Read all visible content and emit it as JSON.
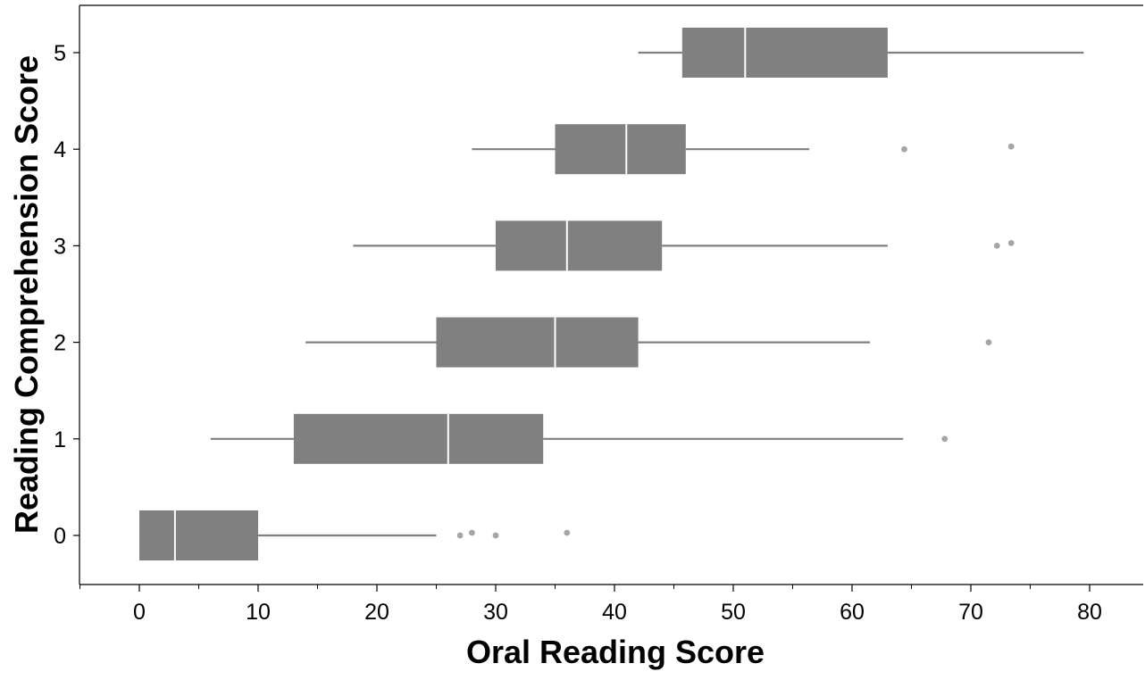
{
  "chart_data": {
    "type": "boxplot",
    "orientation": "horizontal",
    "xlabel": "Oral Reading Score",
    "ylabel": "Reading Comprehension Score",
    "xlim": [
      -5,
      84
    ],
    "ylim": [
      -0.5,
      5.5
    ],
    "xticks": [
      0,
      10,
      20,
      30,
      40,
      50,
      60,
      70,
      80
    ],
    "xtick_labels": [
      "0",
      "10",
      "20",
      "30",
      "40",
      "50",
      "60",
      "70",
      "80"
    ],
    "yticks": [
      0,
      1,
      2,
      3,
      4,
      5
    ],
    "ytick_labels": [
      "0",
      "1",
      "2",
      "3",
      "4",
      "5"
    ],
    "grid": false,
    "legend": "none",
    "colors": {
      "box": "#808080",
      "whisker": "#808080",
      "median": "#ffffff",
      "outlier": "#a6a6a6"
    },
    "boxes": [
      {
        "category": 0,
        "whisker_low": 0,
        "q1": 0,
        "median": 3,
        "q3": 10,
        "whisker_high": 25,
        "outliers": [
          27,
          28,
          30,
          36
        ]
      },
      {
        "category": 1,
        "whisker_low": 6,
        "q1": 13,
        "median": 26,
        "q3": 34,
        "whisker_high": 64.3,
        "outliers": [
          67.8
        ]
      },
      {
        "category": 2,
        "whisker_low": 14,
        "q1": 25,
        "median": 35,
        "q3": 42,
        "whisker_high": 61.5,
        "outliers": [
          71.5
        ]
      },
      {
        "category": 3,
        "whisker_low": 18,
        "q1": 30,
        "median": 36,
        "q3": 44,
        "whisker_high": 63,
        "outliers": [
          72.2,
          73.4
        ]
      },
      {
        "category": 4,
        "whisker_low": 28,
        "q1": 35,
        "median": 41,
        "q3": 46,
        "whisker_high": 56.4,
        "outliers": [
          64.4,
          73.4
        ]
      },
      {
        "category": 5,
        "whisker_low": 42,
        "q1": 45.7,
        "median": 51,
        "q3": 63,
        "whisker_high": 79.5,
        "outliers": []
      }
    ]
  }
}
